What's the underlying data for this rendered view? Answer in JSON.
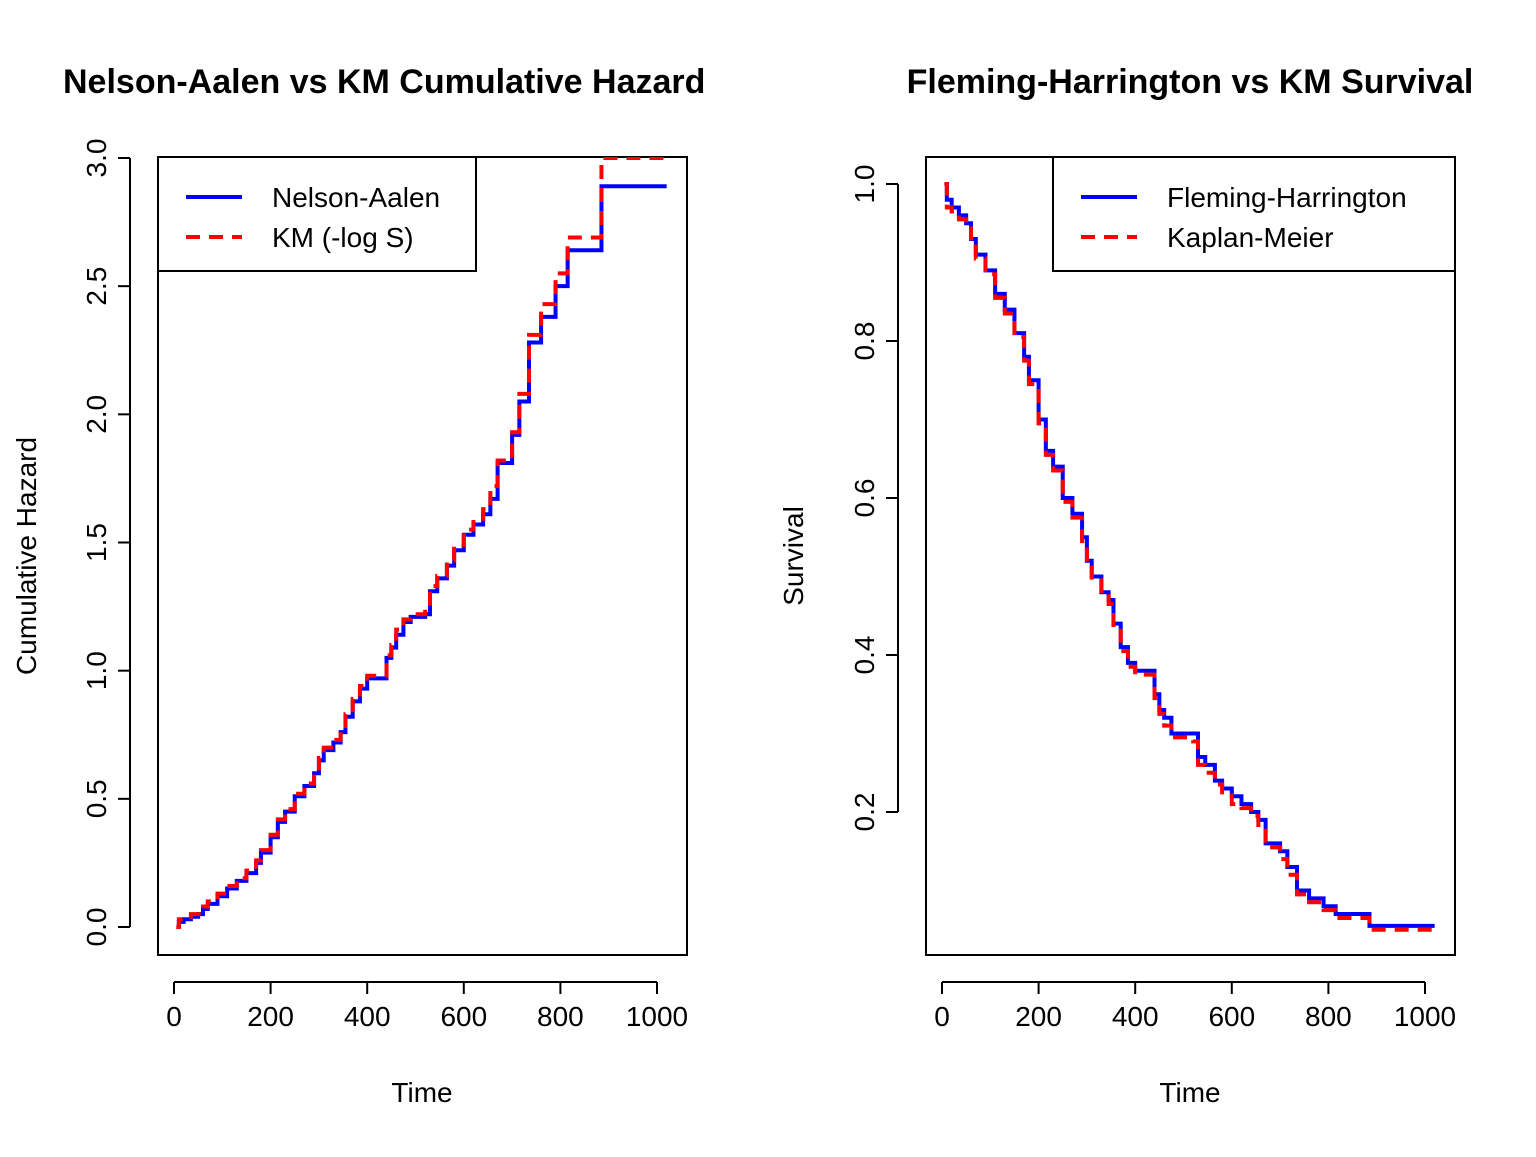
{
  "chart_data": [
    {
      "type": "line",
      "step": true,
      "title": "Nelson-Aalen vs KM Cumulative Hazard",
      "xlabel": "Time",
      "ylabel": "Cumulative Hazard",
      "xlim": [
        0,
        1020
      ],
      "ylim": [
        0,
        3
      ],
      "xticks": [
        0,
        200,
        400,
        600,
        800,
        1000
      ],
      "xtick_labels": [
        "0",
        "200",
        "400",
        "600",
        "800",
        "1000"
      ],
      "yticks": [
        0,
        0.5,
        1,
        1.5,
        2,
        2.5,
        3
      ],
      "ytick_labels": [
        "0.0",
        "0.5",
        "1.0",
        "1.5",
        "2.0",
        "2.5",
        "3.0"
      ],
      "legend_position": "top-left",
      "series": [
        {
          "name": "Nelson-Aalen",
          "color": "#0000ff",
          "dash": "solid",
          "x": [
            5,
            10,
            20,
            35,
            50,
            60,
            70,
            90,
            110,
            130,
            150,
            170,
            180,
            200,
            215,
            230,
            250,
            270,
            290,
            300,
            310,
            330,
            345,
            355,
            370,
            385,
            400,
            420,
            440,
            450,
            460,
            475,
            490,
            520,
            530,
            545,
            565,
            580,
            600,
            620,
            640,
            655,
            670,
            700,
            715,
            735,
            760,
            790,
            815,
            845,
            885,
            1020
          ],
          "y": [
            0.0,
            0.02,
            0.03,
            0.04,
            0.05,
            0.07,
            0.09,
            0.12,
            0.15,
            0.18,
            0.21,
            0.25,
            0.29,
            0.35,
            0.41,
            0.45,
            0.51,
            0.55,
            0.6,
            0.65,
            0.69,
            0.72,
            0.76,
            0.82,
            0.88,
            0.93,
            0.97,
            0.97,
            1.05,
            1.09,
            1.14,
            1.19,
            1.21,
            1.22,
            1.31,
            1.36,
            1.41,
            1.47,
            1.53,
            1.57,
            1.61,
            1.67,
            1.81,
            1.92,
            2.05,
            2.28,
            2.38,
            2.5,
            2.64,
            2.64,
            2.89,
            2.89
          ]
        },
        {
          "name": "KM (-log S)",
          "color": "#ff0000",
          "dash": "dashed",
          "x": [
            5,
            10,
            20,
            35,
            50,
            60,
            70,
            90,
            110,
            130,
            150,
            170,
            180,
            200,
            215,
            230,
            250,
            270,
            290,
            300,
            310,
            330,
            345,
            355,
            370,
            385,
            400,
            420,
            440,
            450,
            460,
            475,
            490,
            520,
            530,
            545,
            565,
            580,
            600,
            620,
            640,
            655,
            670,
            700,
            715,
            735,
            760,
            790,
            815,
            845,
            885,
            1020
          ],
          "y": [
            0.0,
            0.03,
            0.04,
            0.05,
            0.05,
            0.08,
            0.1,
            0.13,
            0.16,
            0.19,
            0.22,
            0.26,
            0.3,
            0.36,
            0.42,
            0.46,
            0.52,
            0.56,
            0.61,
            0.66,
            0.7,
            0.73,
            0.77,
            0.83,
            0.89,
            0.94,
            0.98,
            0.98,
            1.06,
            1.1,
            1.16,
            1.2,
            1.22,
            1.24,
            1.33,
            1.37,
            1.43,
            1.49,
            1.55,
            1.58,
            1.63,
            1.72,
            1.82,
            1.93,
            2.08,
            2.31,
            2.43,
            2.55,
            2.69,
            2.69,
            3.0,
            3.0
          ]
        }
      ]
    },
    {
      "type": "line",
      "step": true,
      "title": "Fleming-Harrington vs KM Survival",
      "xlabel": "Time",
      "ylabel": "Survival",
      "xlim": [
        0,
        1020
      ],
      "ylim": [
        0.05,
        1.0
      ],
      "xticks": [
        0,
        200,
        400,
        600,
        800,
        1000
      ],
      "xtick_labels": [
        "0",
        "200",
        "400",
        "600",
        "800",
        "1000"
      ],
      "yticks": [
        0.2,
        0.4,
        0.6,
        0.8,
        1.0
      ],
      "ytick_labels": [
        "0.2",
        "0.4",
        "0.6",
        "0.8",
        "1.0"
      ],
      "legend_position": "top-right",
      "series": [
        {
          "name": "Fleming-Harrington",
          "color": "#0000ff",
          "dash": "solid",
          "x": [
            5,
            10,
            20,
            35,
            50,
            60,
            70,
            90,
            110,
            130,
            150,
            170,
            180,
            200,
            215,
            230,
            250,
            270,
            290,
            300,
            310,
            330,
            345,
            355,
            370,
            385,
            400,
            420,
            440,
            450,
            460,
            475,
            490,
            520,
            530,
            545,
            565,
            580,
            600,
            620,
            640,
            655,
            670,
            700,
            715,
            735,
            760,
            790,
            815,
            845,
            885,
            1020
          ],
          "y": [
            1.0,
            0.98,
            0.97,
            0.96,
            0.95,
            0.93,
            0.91,
            0.89,
            0.86,
            0.84,
            0.81,
            0.78,
            0.75,
            0.7,
            0.66,
            0.64,
            0.6,
            0.58,
            0.55,
            0.52,
            0.5,
            0.48,
            0.47,
            0.44,
            0.41,
            0.39,
            0.38,
            0.38,
            0.35,
            0.33,
            0.32,
            0.3,
            0.3,
            0.3,
            0.27,
            0.26,
            0.24,
            0.23,
            0.22,
            0.21,
            0.2,
            0.19,
            0.16,
            0.15,
            0.13,
            0.1,
            0.09,
            0.08,
            0.07,
            0.07,
            0.055,
            0.055
          ]
        },
        {
          "name": "Kaplan-Meier",
          "color": "#ff0000",
          "dash": "dashed",
          "x": [
            5,
            10,
            20,
            35,
            50,
            60,
            70,
            90,
            110,
            130,
            150,
            170,
            180,
            200,
            215,
            230,
            250,
            270,
            290,
            300,
            310,
            330,
            345,
            355,
            370,
            385,
            400,
            420,
            440,
            450,
            460,
            475,
            490,
            520,
            530,
            545,
            565,
            580,
            600,
            620,
            640,
            655,
            670,
            700,
            715,
            735,
            760,
            790,
            815,
            845,
            885,
            1020
          ],
          "y": [
            1.0,
            0.97,
            0.965,
            0.955,
            0.95,
            0.925,
            0.905,
            0.885,
            0.855,
            0.835,
            0.805,
            0.775,
            0.745,
            0.695,
            0.655,
            0.635,
            0.595,
            0.575,
            0.545,
            0.515,
            0.495,
            0.475,
            0.465,
            0.435,
            0.405,
            0.385,
            0.375,
            0.375,
            0.345,
            0.325,
            0.31,
            0.295,
            0.295,
            0.29,
            0.26,
            0.25,
            0.235,
            0.225,
            0.21,
            0.205,
            0.195,
            0.18,
            0.155,
            0.14,
            0.12,
            0.095,
            0.085,
            0.075,
            0.065,
            0.065,
            0.05,
            0.05
          ]
        }
      ]
    }
  ]
}
